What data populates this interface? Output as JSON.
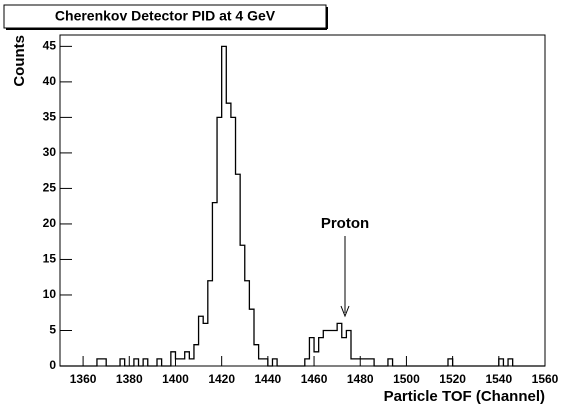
{
  "chart_data": {
    "type": "histogram",
    "title": "Cherenkov Detector PID at 4 GeV",
    "x_label": "Particle TOF (Channel)",
    "y_label": "Counts",
    "annotation": "Proton",
    "color": "#000000",
    "bins": [
      1350,
      1352,
      1354,
      1356,
      1358,
      1360,
      1362,
      1364,
      1366,
      1368,
      1370,
      1372,
      1374,
      1376,
      1378,
      1380,
      1382,
      1384,
      1386,
      1388,
      1390,
      1392,
      1394,
      1396,
      1398,
      1400,
      1402,
      1404,
      1406,
      1408,
      1410,
      1412,
      1414,
      1416,
      1418,
      1420,
      1422,
      1424,
      1426,
      1428,
      1430,
      1432,
      1434,
      1436,
      1438,
      1440,
      1442,
      1444,
      1446,
      1448,
      1450,
      1452,
      1454,
      1456,
      1458,
      1460,
      1462,
      1464,
      1466,
      1468,
      1470,
      1472,
      1474,
      1476,
      1478,
      1480,
      1482,
      1484,
      1486,
      1488,
      1490,
      1492,
      1494,
      1496,
      1498,
      1500,
      1502,
      1504,
      1506,
      1508,
      1510,
      1512,
      1514,
      1516,
      1518,
      1520,
      1522,
      1524,
      1526,
      1528,
      1530,
      1532,
      1534,
      1536,
      1538,
      1540,
      1542,
      1544,
      1546,
      1548,
      1550,
      1552,
      1554,
      1556,
      1558,
      1560
    ],
    "values": [
      0,
      0,
      0,
      0,
      0,
      0,
      0,
      0,
      1,
      1,
      0,
      0,
      0,
      1,
      0,
      0,
      1,
      0,
      1,
      0,
      0,
      1,
      0,
      0,
      2,
      1,
      1,
      2,
      1,
      3,
      7,
      6,
      12,
      23,
      35,
      45,
      37,
      35,
      27,
      17,
      12,
      8,
      3,
      1,
      1,
      0,
      1,
      0,
      0,
      0,
      0,
      0,
      0,
      1,
      4,
      2,
      4,
      5,
      5,
      5,
      6,
      4,
      5,
      1,
      1,
      1,
      1,
      1,
      0,
      0,
      0,
      1,
      0,
      0,
      0,
      0,
      0,
      0,
      0,
      0,
      0,
      0,
      0,
      0,
      1,
      0,
      0,
      0,
      0,
      0,
      0,
      0,
      0,
      0,
      0,
      1,
      0,
      1,
      0,
      0,
      0,
      0,
      0,
      0,
      0
    ],
    "xlim": [
      1350,
      1560
    ],
    "xticks": [
      1360,
      1380,
      1400,
      1420,
      1440,
      1460,
      1480,
      1500,
      1520,
      1540,
      1560
    ],
    "ylim": [
      0,
      46.6
    ],
    "yticks": [
      0,
      5,
      10,
      15,
      20,
      25,
      30,
      35,
      40,
      45
    ]
  }
}
